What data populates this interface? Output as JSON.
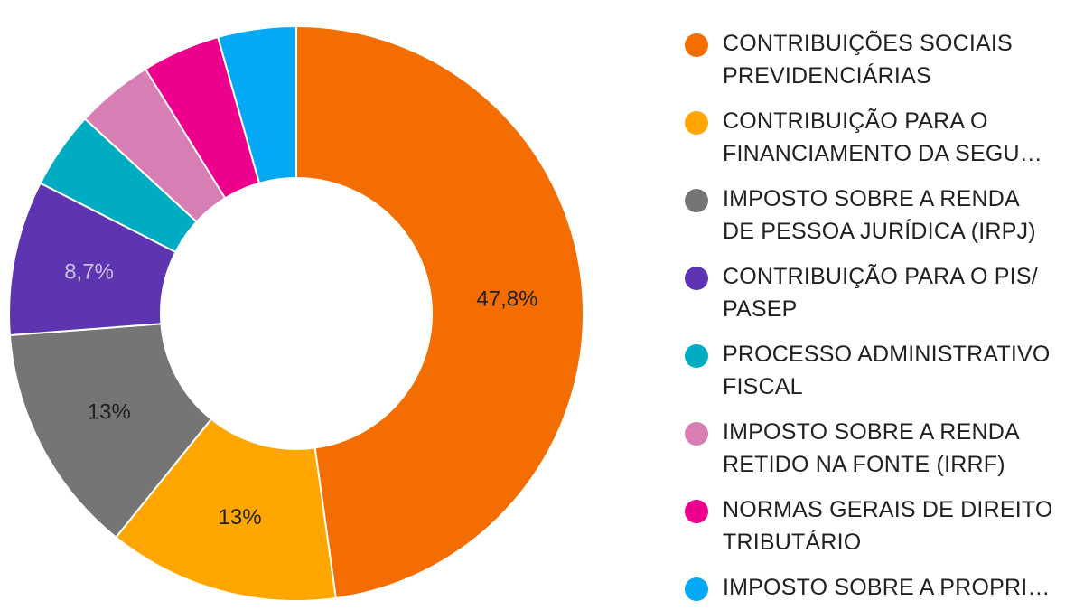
{
  "chart_data": {
    "type": "pie",
    "subtype": "donut",
    "categories": [
      "CONTRIBUIÇÕES SOCIAIS PREVIDENCIÁRIAS",
      "CONTRIBUIÇÃO PARA O FINANCIAMENTO DA SEGU…",
      "IMPOSTO SOBRE A RENDA DE PESSOA JURÍDICA (IRPJ)",
      "CONTRIBUIÇÃO PARA O PIS/PASEP",
      "PROCESSO ADMINISTRATIVO FISCAL",
      "IMPOSTO SOBRE A RENDA RETIDO NA FONTE (IRRF)",
      "NORMAS GERAIS DE DIREITO TRIBUTÁRIO",
      "IMPOSTO SOBRE A PROPRI…"
    ],
    "legend_lines": [
      [
        "CONTRIBUIÇÕES SOCIAIS",
        "PREVIDENCIÁRIAS"
      ],
      [
        "CONTRIBUIÇÃO PARA O",
        "FINANCIAMENTO DA SEGU…"
      ],
      [
        "IMPOSTO SOBRE A RENDA",
        "DE PESSOA JURÍDICA (IRPJ)"
      ],
      [
        "CONTRIBUIÇÃO PARA O PIS/",
        "PASEP"
      ],
      [
        "PROCESSO ADMINISTRATIVO",
        "FISCAL"
      ],
      [
        "IMPOSTO SOBRE A RENDA",
        "RETIDO NA FONTE (IRRF)"
      ],
      [
        "NORMAS GERAIS DE DIREITO",
        "TRIBUTÁRIO"
      ],
      [
        "IMPOSTO SOBRE A PROPRI…"
      ]
    ],
    "values": [
      47.8,
      13,
      13,
      8.7,
      4.35,
      4.35,
      4.4,
      4.4
    ],
    "data_labels": [
      "47,8%",
      "13%",
      "13%",
      "8,7%",
      "",
      "",
      "",
      ""
    ],
    "colors": [
      "#f46d00",
      "#ffa600",
      "#757575",
      "#5e35b1",
      "#00acc1",
      "#d77fb4",
      "#ec008c",
      "#03a9f4"
    ],
    "label_colors": [
      "#212121",
      "#212121",
      "#212121",
      "#c7bde0",
      "",
      "",
      "",
      ""
    ],
    "legend_position": "right",
    "start_angle": "top",
    "direction": "clockwise"
  }
}
